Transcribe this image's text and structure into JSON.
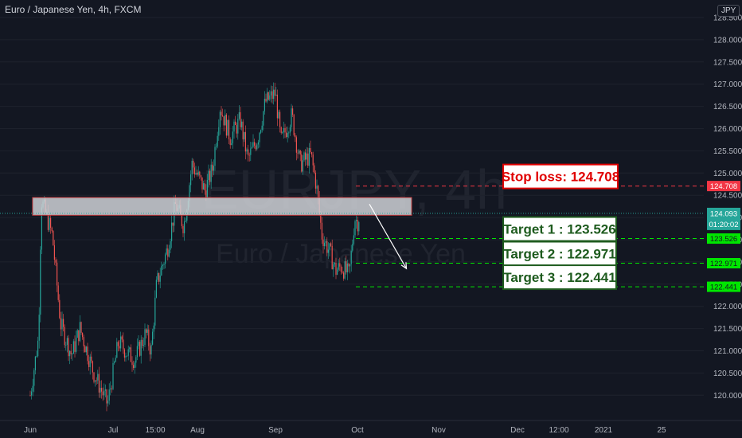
{
  "header": {
    "symbol_title": "Euro / Japanese Yen, 4h, FXCM",
    "currency": "JPY"
  },
  "watermark": {
    "ticker": "EURJPY, 4h",
    "name": "Euro / Japanese Yen"
  },
  "colors": {
    "background": "#131722",
    "up_candle": "#26a69a",
    "down_candle": "#ef5350",
    "stop_line": "#f23645",
    "target_line": "#00e600",
    "price_tag": "#26a69a",
    "stop_box_bg": "#ffffff",
    "stop_box_border": "#e00000",
    "stop_box_text": "#e00000",
    "target_box_bg": "#ffffff",
    "target_box_border": "#1e5b1e",
    "target_box_text": "#1e5b1e",
    "zone_fill": "#cfd1d6",
    "zone_border": "#c0393b",
    "arrow": "#ffffff"
  },
  "chart_data": {
    "type": "candlestick",
    "title": "Euro / Japanese Yen, 4h, FXCM",
    "ylim": [
      119.65,
      128.55
    ],
    "y_ticks": [
      "120.000",
      "120.500",
      "121.000",
      "121.500",
      "122.000",
      "122.500",
      "123.000",
      "123.500",
      "124.000",
      "124.500",
      "125.000",
      "125.500",
      "126.000",
      "126.500",
      "127.000",
      "127.500",
      "128.000",
      "128.500"
    ],
    "x_ticks": [
      "Jun",
      "Jul",
      "15:00",
      "Aug",
      "Sep",
      "Oct",
      "Nov",
      "Dec",
      "12:00",
      "2021",
      "25"
    ],
    "price_path": [
      {
        "date": "Jun 1",
        "price": 120.0
      },
      {
        "date": "Jun 4",
        "price": 121.3
      },
      {
        "date": "Jun 5",
        "price": 124.4
      },
      {
        "date": "Jun 9",
        "price": 123.6
      },
      {
        "date": "Jun 12",
        "price": 121.6
      },
      {
        "date": "Jun 16",
        "price": 120.9
      },
      {
        "date": "Jun 19",
        "price": 121.5
      },
      {
        "date": "Jun 24",
        "price": 120.5
      },
      {
        "date": "Jun 29",
        "price": 119.8
      },
      {
        "date": "Jul 3",
        "price": 121.2
      },
      {
        "date": "Jul 7",
        "price": 120.9
      },
      {
        "date": "Jul 9",
        "price": 120.8
      },
      {
        "date": "Jul 13",
        "price": 121.4
      },
      {
        "date": "Jul 15",
        "price": 121.0
      },
      {
        "date": "Jul 17",
        "price": 122.5
      },
      {
        "date": "Jul 21",
        "price": 123.3
      },
      {
        "date": "Jul 24",
        "price": 124.3
      },
      {
        "date": "Jul 27",
        "price": 123.8
      },
      {
        "date": "Jul 30",
        "price": 125.2
      },
      {
        "date": "Aug 4",
        "price": 124.6
      },
      {
        "date": "Aug 7",
        "price": 125.1
      },
      {
        "date": "Aug 10",
        "price": 126.5
      },
      {
        "date": "Aug 14",
        "price": 125.8
      },
      {
        "date": "Aug 18",
        "price": 126.2
      },
      {
        "date": "Aug 21",
        "price": 125.3
      },
      {
        "date": "Aug 25",
        "price": 125.8
      },
      {
        "date": "Aug 28",
        "price": 126.6
      },
      {
        "date": "Sep 1",
        "price": 126.8
      },
      {
        "date": "Sep 3",
        "price": 125.7
      },
      {
        "date": "Sep 7",
        "price": 126.3
      },
      {
        "date": "Sep 10",
        "price": 125.2
      },
      {
        "date": "Sep 14",
        "price": 125.4
      },
      {
        "date": "Sep 16",
        "price": 124.7
      },
      {
        "date": "Sep 18",
        "price": 123.6
      },
      {
        "date": "Sep 21",
        "price": 123.2
      },
      {
        "date": "Sep 23",
        "price": 122.8
      },
      {
        "date": "Sep 25",
        "price": 122.9
      },
      {
        "date": "Sep 28",
        "price": 122.7
      },
      {
        "date": "Sep 30",
        "price": 124.0
      },
      {
        "date": "Oct 1",
        "price": 123.9
      },
      {
        "date": "Oct 2",
        "price": 124.1
      }
    ],
    "current_price": "124.093",
    "countdown": "01:20:02",
    "levels": [
      {
        "name": "Stop loss",
        "price": 124.708,
        "label": "Stop loss: 124.708",
        "tag": "124.708",
        "kind": "stop"
      },
      {
        "name": "Target 1",
        "price": 123.526,
        "label": "Target 1 : 123.526",
        "tag": "123.526",
        "kind": "target"
      },
      {
        "name": "Target 2",
        "price": 122.971,
        "label": "Target 2 : 122.971",
        "tag": "122.971",
        "kind": "target"
      },
      {
        "name": "Target 3",
        "price": 122.441,
        "label": "Target 3 : 122.441",
        "tag": "122.441",
        "kind": "target"
      }
    ],
    "zone": {
      "from_date": "Jun 5",
      "to_date": "Oct 15",
      "top": 124.45,
      "bottom": 124.05
    },
    "arrow": {
      "from": {
        "date": "Oct 1",
        "price": 124.3
      },
      "to": {
        "date": "Oct 13",
        "price": 122.85
      }
    }
  }
}
